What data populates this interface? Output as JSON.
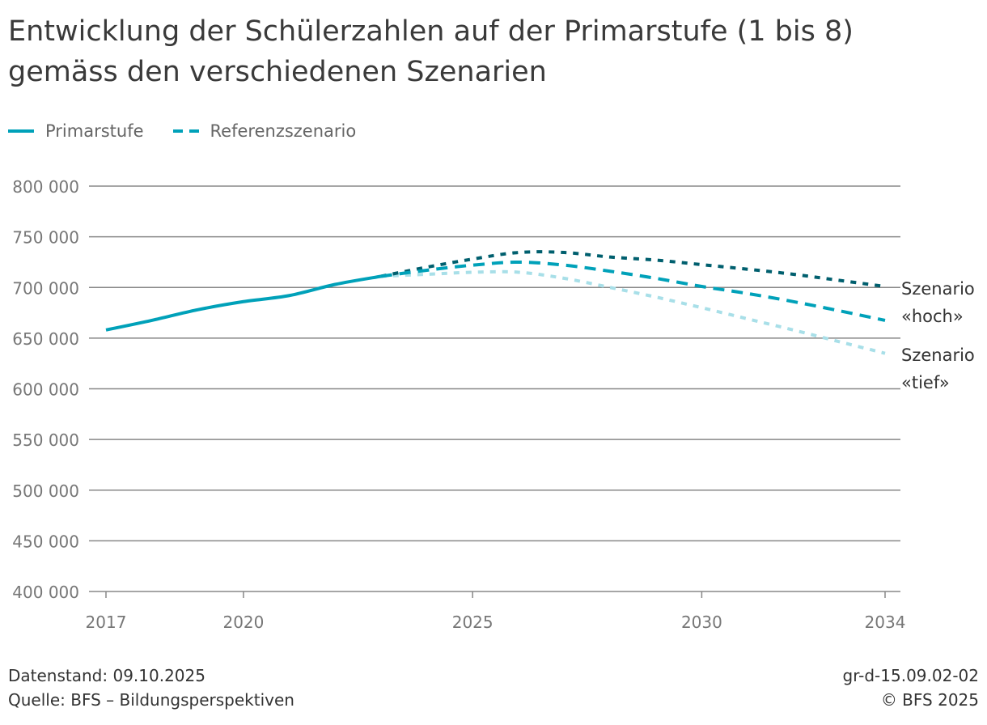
{
  "title_line1": "Entwicklung der Schülerzahlen auf der Primarstufe (1 bis 8)",
  "title_line2": "gemäss den verschiedenen Szenarien",
  "footer": {
    "datenstand": "Datenstand: 09.10.2025",
    "quelle": "Quelle: BFS – Bildungsperspektiven",
    "code": "gr-d-15.09.02-02",
    "copyright": "© BFS 2025"
  },
  "colors": {
    "primarstufe": "#00a1b9",
    "referenz": "#00a1b9",
    "hoch": "#005f6e",
    "tief": "#a8dfe8",
    "grid": "#888888",
    "axis_text": "#777777"
  },
  "chart_data": {
    "type": "line",
    "xlim": [
      2017,
      2034
    ],
    "ylim": [
      400000,
      800000
    ],
    "grid": true,
    "legend_placement": "top-left",
    "y_ticks": [
      400000,
      450000,
      500000,
      550000,
      600000,
      650000,
      700000,
      750000,
      800000
    ],
    "y_tick_labels": [
      "400 000",
      "450 000",
      "500 000",
      "550 000",
      "600 000",
      "650 000",
      "700 000",
      "750 000",
      "800 000"
    ],
    "x_ticks": [
      2017,
      2020,
      2025,
      2030,
      2034
    ],
    "x_tick_labels": [
      "2017",
      "2020",
      "2025",
      "2030",
      "2034"
    ],
    "series": [
      {
        "name": "Primarstufe",
        "style": "solid",
        "x": [
          2017,
          2018,
          2019,
          2020,
          2021,
          2022,
          2023
        ],
        "values": [
          658000,
          667500,
          678000,
          686000,
          692000,
          703000,
          711000
        ]
      },
      {
        "name": "Referenzszenario",
        "style": "dashed",
        "x": [
          2023,
          2024,
          2025,
          2026,
          2027,
          2028,
          2029,
          2030,
          2031,
          2032,
          2033,
          2034
        ],
        "values": [
          711000,
          717000,
          722000,
          725000,
          722000,
          716000,
          709000,
          701000,
          694000,
          686000,
          677000,
          667500
        ]
      },
      {
        "label_line1": "Szenario",
        "label_line2": "«hoch»",
        "style": "dotted",
        "x": [
          2023,
          2024,
          2025,
          2026,
          2027,
          2028,
          2029,
          2030,
          2031,
          2032,
          2033,
          2034
        ],
        "values": [
          711000,
          720000,
          728000,
          734500,
          734500,
          730000,
          727000,
          722500,
          718000,
          713000,
          707000,
          701000
        ]
      },
      {
        "label_line1": "Szenario",
        "label_line2": "«tief»",
        "style": "dotted",
        "x": [
          2023,
          2024,
          2025,
          2026,
          2027,
          2028,
          2029,
          2030,
          2031,
          2032,
          2033,
          2034
        ],
        "values": [
          711000,
          713000,
          715000,
          715000,
          709000,
          700000,
          690500,
          680000,
          669000,
          658000,
          646500,
          635000
        ]
      }
    ]
  }
}
